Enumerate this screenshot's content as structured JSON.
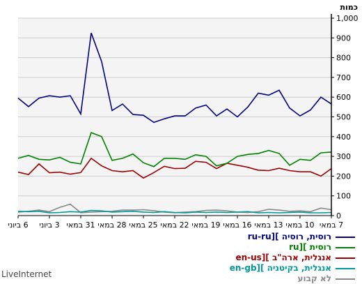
{
  "chart_data": {
    "type": "line",
    "ylabel": "כמות",
    "ylim": [
      0,
      1000
    ],
    "yticks": [
      0,
      100,
      200,
      300,
      400,
      500,
      600,
      700,
      800,
      900,
      1000
    ],
    "ytick_labels": [
      "0",
      "100",
      "200",
      "300",
      "400",
      "500",
      "600",
      "700",
      "800",
      "900",
      "1,000"
    ],
    "x_tick_labels": [
      "6 ביוני",
      "3 ביוני",
      "31 במאי",
      "28 במאי",
      "25 במאי",
      "22 במאי",
      "19 במאי",
      "16 במאי",
      "13 במאי",
      "10 במאי",
      "7 במאי"
    ],
    "x_note": "x runs from 6 June (left) to 7 May (right), daily points",
    "grid": true,
    "legend_position": "bottom",
    "series": [
      {
        "name": "רוסית, רוסיה ][ru-ru",
        "color": "#000080",
        "values": [
          595,
          552,
          595,
          607,
          600,
          607,
          515,
          925,
          780,
          532,
          565,
          512,
          508,
          472,
          490,
          505,
          505,
          545,
          560,
          505,
          540,
          500,
          550,
          620,
          610,
          635,
          545,
          505,
          535,
          600,
          565
        ]
      },
      {
        "name": "רוסית ][ru",
        "color": "#008000",
        "values": [
          290,
          305,
          285,
          282,
          295,
          270,
          262,
          420,
          400,
          280,
          290,
          312,
          268,
          248,
          290,
          290,
          285,
          308,
          300,
          252,
          265,
          300,
          310,
          315,
          330,
          315,
          255,
          285,
          280,
          318,
          322
        ]
      },
      {
        "name": "אנגלית, ארה\"ב ][en-us",
        "color": "#990000",
        "values": [
          220,
          208,
          262,
          217,
          220,
          210,
          218,
          290,
          252,
          228,
          222,
          228,
          190,
          218,
          250,
          238,
          240,
          275,
          270,
          238,
          265,
          255,
          245,
          230,
          228,
          240,
          228,
          222,
          222,
          200,
          238
        ]
      },
      {
        "name": "אנגלית, בקיטניה ][en-gb",
        "color": "#009999",
        "values": [
          22,
          20,
          22,
          14,
          16,
          20,
          18,
          26,
          24,
          18,
          20,
          22,
          18,
          16,
          20,
          16,
          14,
          18,
          16,
          18,
          16,
          18,
          20,
          14,
          16,
          14,
          16,
          18,
          14,
          14,
          16
        ]
      },
      {
        "name": "לא קבוע",
        "color": "#888888",
        "values": [
          18,
          22,
          28,
          20,
          42,
          58,
          15,
          18,
          20,
          22,
          28,
          28,
          30,
          25,
          18,
          15,
          18,
          20,
          26,
          28,
          24,
          18,
          16,
          20,
          32,
          28,
          22,
          24,
          20,
          38,
          30
        ]
      }
    ]
  },
  "brand": "LiveInternet"
}
